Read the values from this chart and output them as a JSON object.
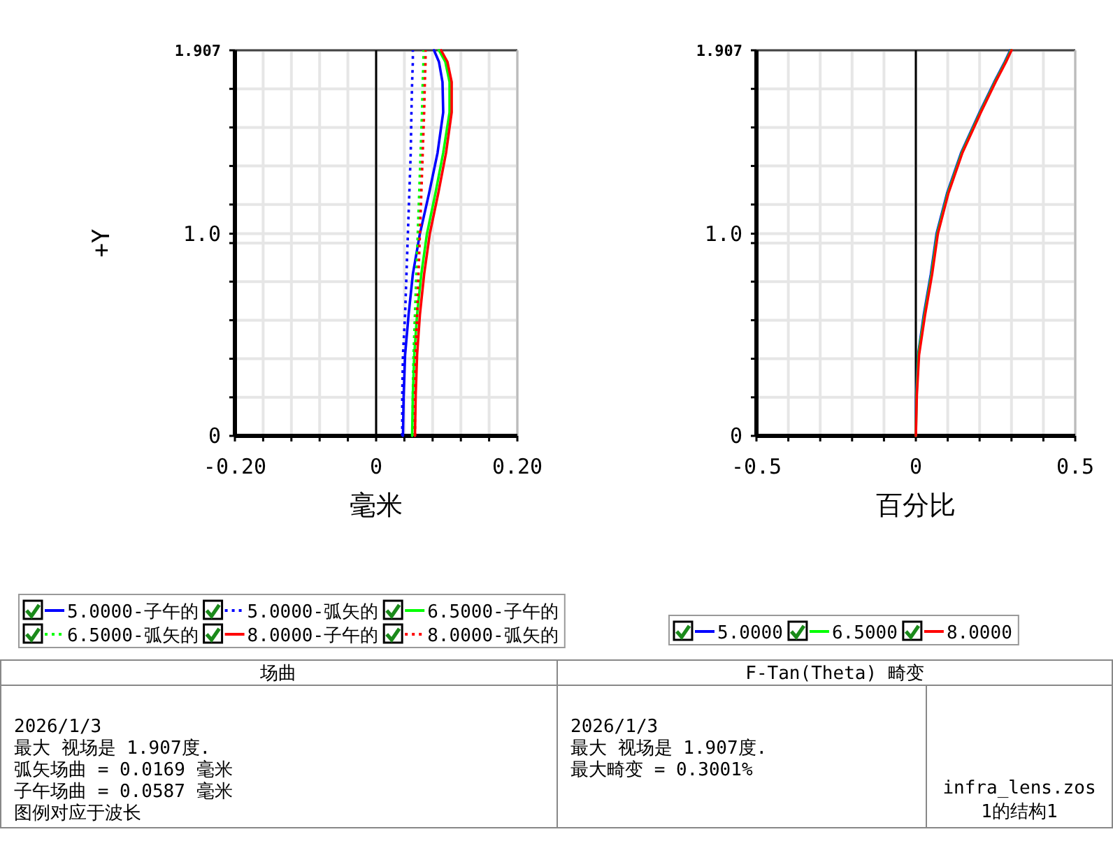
{
  "chart_data": [
    {
      "type": "line",
      "title": "场曲",
      "xlabel": "毫米",
      "ylabel": "+Y",
      "xlim": [
        -0.2,
        0.2
      ],
      "ylim": [
        0,
        1.907
      ],
      "xticks": [
        {
          "value": -0.2,
          "label": "-0.20"
        },
        {
          "value": -0.16,
          "label": null
        },
        {
          "value": -0.12,
          "label": null
        },
        {
          "value": -0.08,
          "label": null
        },
        {
          "value": -0.04,
          "label": null
        },
        {
          "value": 0,
          "label": "0"
        },
        {
          "value": 0.04,
          "label": null
        },
        {
          "value": 0.08,
          "label": null
        },
        {
          "value": 0.12,
          "label": null
        },
        {
          "value": 0.16,
          "label": null
        },
        {
          "value": 0.2,
          "label": "0.20"
        }
      ],
      "yticks": [
        {
          "value": 0,
          "label": "0"
        },
        {
          "value": 0.1907,
          "label": null
        },
        {
          "value": 0.3814,
          "label": null
        },
        {
          "value": 0.5721,
          "label": null
        },
        {
          "value": 0.7628,
          "label": null
        },
        {
          "value": 0.9535,
          "label": null
        },
        {
          "value": 1.0,
          "label": "1.0"
        },
        {
          "value": 1.1442,
          "label": null
        },
        {
          "value": 1.3349,
          "label": null
        },
        {
          "value": 1.5256,
          "label": null
        },
        {
          "value": 1.7163,
          "label": null
        },
        {
          "value": 1.907,
          "label": "1.907"
        }
      ],
      "grid": true,
      "legend": "bottom",
      "ref_lines": [
        {
          "axis": "x",
          "value": 0,
          "color": "#000000"
        }
      ],
      "series": [
        {
          "name": "5.0000-子午的",
          "color": "#0000ff",
          "line_style": "solid",
          "x": [
            0.038,
            0.039,
            0.041,
            0.046,
            0.052,
            0.062,
            0.075,
            0.087,
            0.095,
            0.094,
            0.089,
            0.082
          ],
          "values": [
            0,
            0.2,
            0.4,
            0.6,
            0.8,
            1.0,
            1.2,
            1.4,
            1.6,
            1.75,
            1.85,
            1.907
          ]
        },
        {
          "name": "5.0000-弧矢的",
          "color": "#0000ff",
          "line_style": "dotted",
          "x": [
            0.037,
            0.037,
            0.038,
            0.041,
            0.043,
            0.045,
            0.047,
            0.049,
            0.05,
            0.051,
            0.052,
            0.052
          ],
          "values": [
            0,
            0.2,
            0.4,
            0.6,
            0.8,
            1.0,
            1.2,
            1.4,
            1.6,
            1.75,
            1.85,
            1.907
          ]
        },
        {
          "name": "6.5000-子午的",
          "color": "#00ff00",
          "line_style": "solid",
          "x": [
            0.051,
            0.052,
            0.054,
            0.058,
            0.064,
            0.072,
            0.084,
            0.095,
            0.104,
            0.104,
            0.098,
            0.089
          ],
          "values": [
            0,
            0.2,
            0.4,
            0.6,
            0.8,
            1.0,
            1.2,
            1.4,
            1.6,
            1.75,
            1.85,
            1.907
          ]
        },
        {
          "name": "6.5000-弧矢的",
          "color": "#00ff00",
          "line_style": "dotted",
          "x": [
            0.052,
            0.052,
            0.053,
            0.055,
            0.057,
            0.059,
            0.061,
            0.063,
            0.065,
            0.066,
            0.067,
            0.067
          ],
          "values": [
            0,
            0.2,
            0.4,
            0.6,
            0.8,
            1.0,
            1.2,
            1.4,
            1.6,
            1.75,
            1.85,
            1.907
          ]
        },
        {
          "name": "8.0000-子午的",
          "color": "#ff0000",
          "line_style": "solid",
          "x": [
            0.055,
            0.056,
            0.058,
            0.062,
            0.068,
            0.076,
            0.088,
            0.099,
            0.107,
            0.107,
            0.101,
            0.092
          ],
          "values": [
            0,
            0.2,
            0.4,
            0.6,
            0.8,
            1.0,
            1.2,
            1.4,
            1.6,
            1.75,
            1.85,
            1.907
          ]
        },
        {
          "name": "8.0000-弧矢的",
          "color": "#ff0000",
          "line_style": "dotted",
          "x": [
            0.055,
            0.055,
            0.056,
            0.058,
            0.06,
            0.062,
            0.064,
            0.066,
            0.068,
            0.069,
            0.07,
            0.07
          ],
          "values": [
            0,
            0.2,
            0.4,
            0.6,
            0.8,
            1.0,
            1.2,
            1.4,
            1.6,
            1.75,
            1.85,
            1.907
          ]
        }
      ],
      "annotations": [
        "2026/1/3",
        "最大 视场是 1.907度.",
        "弧矢场曲 = 0.0169 毫米",
        "子午场曲 = 0.0587 毫米",
        "图例对应于波长"
      ]
    },
    {
      "type": "line",
      "title": "F-Tan(Theta) 畸变",
      "xlabel": "百分比",
      "xlim": [
        -0.5,
        0.5
      ],
      "ylim": [
        0,
        1.907
      ],
      "xticks": [
        {
          "value": -0.5,
          "label": "-0.5"
        },
        {
          "value": -0.4,
          "label": null
        },
        {
          "value": -0.3,
          "label": null
        },
        {
          "value": -0.2,
          "label": null
        },
        {
          "value": -0.1,
          "label": null
        },
        {
          "value": 0,
          "label": "0"
        },
        {
          "value": 0.1,
          "label": null
        },
        {
          "value": 0.2,
          "label": null
        },
        {
          "value": 0.3,
          "label": null
        },
        {
          "value": 0.4,
          "label": null
        },
        {
          "value": 0.5,
          "label": "0.5"
        }
      ],
      "yticks": [
        {
          "value": 0,
          "label": "0"
        },
        {
          "value": 0.1907,
          "label": null
        },
        {
          "value": 0.3814,
          "label": null
        },
        {
          "value": 0.5721,
          "label": null
        },
        {
          "value": 0.7628,
          "label": null
        },
        {
          "value": 0.9535,
          "label": null
        },
        {
          "value": 1.0,
          "label": "1.0"
        },
        {
          "value": 1.1442,
          "label": null
        },
        {
          "value": 1.3349,
          "label": null
        },
        {
          "value": 1.5256,
          "label": null
        },
        {
          "value": 1.7163,
          "label": null
        },
        {
          "value": 1.907,
          "label": "1.907"
        }
      ],
      "grid": true,
      "legend": "bottom",
      "ref_lines": [
        {
          "axis": "x",
          "value": 0,
          "color": "#000000"
        }
      ],
      "series": [
        {
          "name": "5.0000",
          "color": "#0000ff",
          "line_style": "solid",
          "x": [
            0,
            0.001,
            0.007,
            0.025,
            0.047,
            0.065,
            0.098,
            0.142,
            0.2,
            0.246,
            0.279,
            0.296
          ],
          "values": [
            0,
            0.2,
            0.4,
            0.6,
            0.8,
            1.0,
            1.2,
            1.4,
            1.6,
            1.75,
            1.85,
            1.907
          ]
        },
        {
          "name": "6.5000",
          "color": "#00ff00",
          "line_style": "solid",
          "x": [
            0,
            0.002,
            0.008,
            0.027,
            0.049,
            0.067,
            0.1,
            0.144,
            0.202,
            0.248,
            0.281,
            0.298
          ],
          "values": [
            0,
            0.2,
            0.4,
            0.6,
            0.8,
            1.0,
            1.2,
            1.4,
            1.6,
            1.75,
            1.85,
            1.907
          ]
        },
        {
          "name": "8.0000",
          "color": "#ff0000",
          "line_style": "solid",
          "x": [
            0,
            0.003,
            0.01,
            0.029,
            0.051,
            0.069,
            0.102,
            0.146,
            0.204,
            0.25,
            0.283,
            0.3
          ],
          "values": [
            0,
            0.2,
            0.4,
            0.6,
            0.8,
            1.0,
            1.2,
            1.4,
            1.6,
            1.75,
            1.85,
            1.907
          ]
        }
      ],
      "annotations": [
        "2026/1/3",
        "最大 视场是 1.907度.",
        "最大畸变 = 0.3001%",
        "infra_lens.zos",
        "1的结构1"
      ]
    }
  ]
}
